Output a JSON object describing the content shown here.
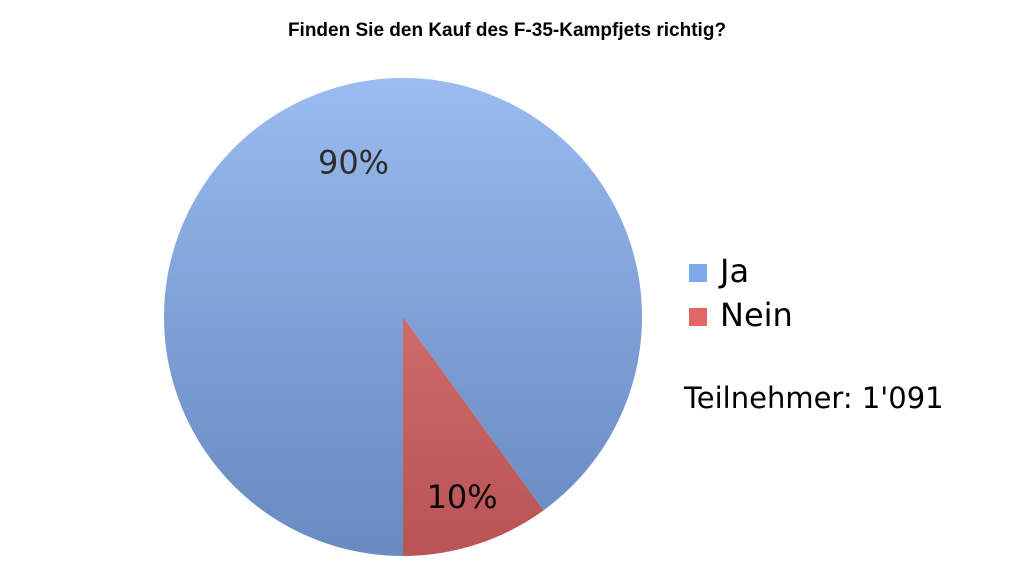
{
  "chart_data": {
    "type": "pie",
    "title": "Finden Sie den Kauf des F-35-Kampfjets richtig?",
    "categories": [
      "Ja",
      "Nein"
    ],
    "values": [
      90,
      10
    ],
    "value_labels": [
      "90%",
      "10%"
    ],
    "colors": [
      "#7fa9ec",
      "#e36666"
    ],
    "legend": "right",
    "annotation": "Teilnehmer: 1'091"
  }
}
